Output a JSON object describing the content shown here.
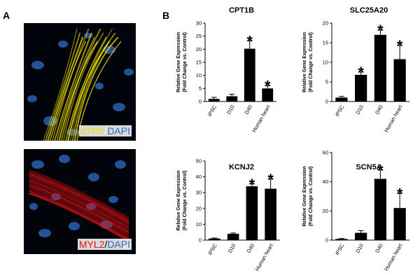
{
  "panels": {
    "a_label": "A",
    "b_label": "B"
  },
  "micrographs": [
    {
      "marker": "cTNT",
      "separator": "/",
      "counterstain": "DAPI",
      "marker_color": "#f2e200",
      "counterstain_color": "#2f6cc4"
    },
    {
      "marker": "MYL2",
      "separator": "/",
      "counterstain": "DAPI",
      "marker_color": "#e81010",
      "counterstain_color": "#2f6cc4"
    }
  ],
  "y_axis_title_lines": [
    "Relative Gene Expression",
    "(Fold Change vs. Control)"
  ],
  "significance_marker": "*",
  "bar_color": "#000000",
  "chart_data": [
    {
      "type": "bar",
      "title": "CPT1B",
      "categories": [
        "iPSC",
        "D10",
        "D40",
        "Human heart"
      ],
      "values": [
        1.0,
        2.0,
        20.2,
        5.0
      ],
      "errors": [
        0.6,
        0.8,
        3.0,
        1.0
      ],
      "significant": [
        false,
        false,
        true,
        true
      ],
      "ylim": [
        0,
        30
      ],
      "yticks": [
        0,
        5,
        10,
        15,
        20,
        25,
        30
      ]
    },
    {
      "type": "bar",
      "title": "SLC25A20",
      "categories": [
        "iPSC",
        "D10",
        "D40",
        "Human heart"
      ],
      "values": [
        1.0,
        6.8,
        17.0,
        10.8
      ],
      "errors": [
        0.3,
        0.7,
        1.2,
        3.5
      ],
      "significant": [
        false,
        true,
        true,
        true
      ],
      "ylim": [
        0,
        20
      ],
      "yticks": [
        0,
        5,
        10,
        15,
        20
      ]
    },
    {
      "type": "bar",
      "title": "KCNJ2",
      "categories": [
        "iPSC",
        "D10",
        "D40",
        "Human heart"
      ],
      "values": [
        1.0,
        4.0,
        34.0,
        32.5
      ],
      "errors": [
        0.3,
        0.5,
        1.5,
        6.0
      ],
      "significant": [
        false,
        false,
        true,
        true
      ],
      "ylim": [
        0,
        50
      ],
      "yticks": [
        0,
        10,
        20,
        30,
        40,
        50
      ]
    },
    {
      "type": "bar",
      "title": "SCN5A",
      "categories": [
        "iPSC",
        "D10",
        "D40",
        "Human heart"
      ],
      "values": [
        0.8,
        5.0,
        42.0,
        22.0
      ],
      "errors": [
        0.3,
        1.5,
        6.0,
        10.0
      ],
      "significant": [
        false,
        false,
        true,
        true
      ],
      "ylim": [
        0,
        60
      ],
      "yticks": [
        0,
        20,
        40,
        60
      ]
    }
  ]
}
